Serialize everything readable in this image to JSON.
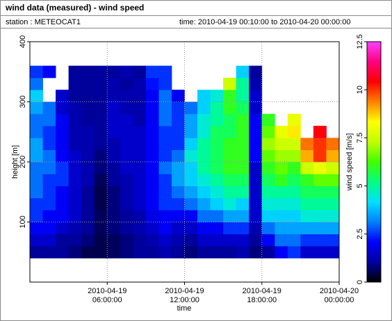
{
  "chart_data": {
    "type": "heatmap",
    "title": "wind data (measured) - wind speed",
    "station": "station : METEOCAT1",
    "period": "time: 2010-04-19 00:10:00 to 2010-04-20 00:00:00",
    "x_label": "time",
    "y_label": "height [m]",
    "colorbar_label": "wind speed [m/s]",
    "xlim": [
      0,
      24
    ],
    "xticks": [
      {
        "value": 6,
        "label": "2010-04-19 06:00:00"
      },
      {
        "value": 12,
        "label": "2010-04-19 12:00:00"
      },
      {
        "value": 18,
        "label": "2010-04-19 18:00:00"
      },
      {
        "value": 24,
        "label": "2010-04-20 00:00:00"
      }
    ],
    "ylim": [
      0,
      400
    ],
    "yticks": [
      100,
      200,
      300,
      400
    ],
    "zlim": [
      0,
      12.5
    ],
    "zticks": [
      0,
      2.5,
      5,
      7.5,
      10,
      12.5
    ],
    "grid": true,
    "colormap": [
      "#000000",
      "#0000a0",
      "#0000ff",
      "#0080ff",
      "#00e0ff",
      "#00ff80",
      "#40ff00",
      "#c0ff00",
      "#ffff00",
      "#ff8000",
      "#ff0000",
      "#ff0080",
      "#ff40ff"
    ],
    "x": [
      0,
      1,
      2,
      3,
      4,
      5,
      6,
      7,
      8,
      9,
      10,
      11,
      12,
      13,
      14,
      15,
      16,
      17,
      18,
      19,
      20,
      21,
      22,
      23
    ],
    "y": [
      40,
      60,
      80,
      100,
      120,
      140,
      160,
      180,
      200,
      220,
      240,
      260,
      280,
      300,
      320,
      340
    ],
    "values": [
      [
        1,
        1.5,
        2,
        2.5,
        2.5,
        3,
        3,
        3,
        3.5,
        3.5,
        3,
        3,
        3.5,
        4,
        3,
        2.5
      ],
      [
        1,
        1.5,
        2,
        2,
        2.5,
        2.5,
        2.5,
        3,
        3,
        2.5,
        2.5,
        3,
        3,
        null,
        null,
        2
      ],
      [
        1,
        1,
        1.5,
        2,
        2,
        2,
        2.5,
        2.5,
        2,
        2,
        2,
        2,
        1.5,
        1.5,
        null,
        null
      ],
      [
        0.8,
        1,
        1.2,
        1.5,
        1.5,
        1.5,
        1.5,
        1.5,
        1.5,
        1.2,
        1.2,
        1.2,
        1.2,
        1,
        1,
        1
      ],
      [
        0.5,
        0.8,
        1,
        1,
        1,
        1,
        1.2,
        1.2,
        1.2,
        1.2,
        1.2,
        1,
        1,
        1,
        1,
        1
      ],
      [
        0.5,
        0.5,
        0.6,
        0.6,
        0.5,
        0.5,
        0.6,
        0.8,
        0.8,
        1,
        1,
        1,
        1,
        1,
        1,
        1
      ],
      [
        0.6,
        0.6,
        0.8,
        0.8,
        0.8,
        0.8,
        1,
        1,
        1.2,
        1.2,
        1.5,
        1.5,
        1.5,
        1.2,
        1.2,
        1
      ],
      [
        0.8,
        0.8,
        1,
        1,
        1.2,
        1.2,
        1.2,
        1.5,
        1.5,
        1.5,
        1.5,
        1.5,
        1.2,
        1.2,
        1,
        1.2
      ],
      [
        1,
        1,
        1.2,
        1.2,
        1.5,
        1.5,
        1.5,
        1.5,
        1.5,
        1.5,
        1.5,
        1.2,
        1.2,
        1.2,
        1.2,
        1
      ],
      [
        1,
        1.2,
        1.5,
        1.8,
        2,
        2,
        2,
        2,
        2,
        2,
        2,
        2,
        2,
        2,
        2.2,
        2.5
      ],
      [
        1.2,
        1.5,
        2,
        2,
        2.5,
        2.5,
        2.5,
        3,
        2.5,
        2.5,
        2.5,
        3,
        3,
        3,
        2.5,
        2.5
      ],
      [
        1,
        1.2,
        1.5,
        2,
        2.5,
        3,
        3.5,
        3.5,
        3,
        2.5,
        2.5,
        2.5,
        2.5,
        2,
        null,
        null
      ],
      [
        0.8,
        1,
        1.5,
        2,
        3,
        3.5,
        4,
        4,
        4.5,
        4,
        3.5,
        3.5,
        3,
        null,
        null,
        null
      ],
      [
        1,
        1.5,
        2,
        3,
        3.5,
        4,
        4.5,
        5,
        5,
        5,
        4.5,
        4.5,
        4,
        4,
        null,
        null
      ],
      [
        1,
        1.5,
        2,
        3,
        4,
        4.5,
        5,
        5.5,
        5.5,
        5.5,
        5.5,
        5,
        5,
        4.5,
        null,
        null
      ],
      [
        1,
        1.5,
        2.5,
        3.5,
        4.5,
        5,
        5.5,
        6,
        6,
        6,
        5.5,
        5.5,
        6,
        6,
        7.5,
        null
      ],
      [
        1.2,
        1.5,
        2.5,
        3.5,
        4,
        5,
        5.5,
        6,
        6,
        6,
        6,
        6,
        5.5,
        5,
        5,
        4
      ],
      [
        0.8,
        1,
        1.2,
        1.5,
        1.5,
        1.5,
        1.5,
        1.5,
        2,
        2,
        2,
        2,
        1.5,
        1.5,
        1.2,
        1
      ],
      [
        1,
        2,
        3,
        4,
        4.5,
        5,
        5.5,
        6,
        6.5,
        7,
        6.5,
        6,
        null,
        null,
        null,
        null
      ],
      [
        2,
        3,
        3.5,
        4,
        4.5,
        5,
        6,
        6.5,
        7,
        7.5,
        8,
        null,
        null,
        null,
        null,
        null
      ],
      [
        2.5,
        3,
        3.5,
        4,
        4.5,
        5,
        5.5,
        6,
        7,
        7.5,
        8.5,
        8,
        null,
        null,
        null,
        null
      ],
      [
        1.5,
        2.5,
        3.5,
        4.5,
        5,
        5.5,
        6,
        7.5,
        9,
        9.5,
        null,
        null,
        null,
        null,
        null,
        null
      ],
      [
        1.5,
        2.5,
        3.5,
        4.5,
        5,
        5.5,
        6.5,
        8,
        10,
        10,
        10.5,
        null,
        null,
        null,
        null,
        null
      ],
      [
        1.5,
        2.5,
        3.5,
        4.5,
        5,
        5.5,
        6.5,
        7.5,
        9,
        9.5,
        null,
        null,
        null,
        null,
        null,
        null
      ]
    ]
  }
}
